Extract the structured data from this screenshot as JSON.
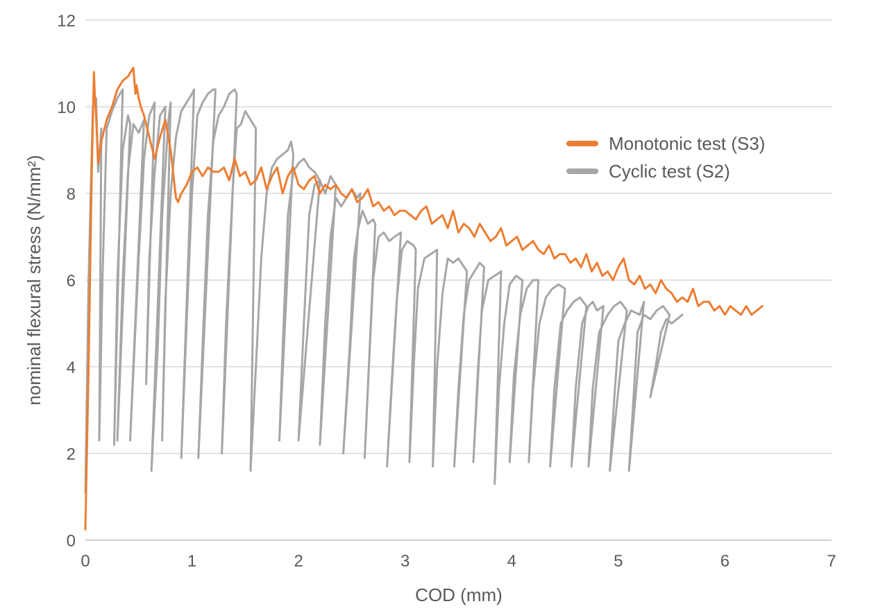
{
  "chart_data": {
    "type": "line",
    "xlabel": "COD (mm)",
    "ylabel": "nominal flexural stress (N/mm²)",
    "xlim": [
      0,
      7
    ],
    "ylim": [
      0,
      12
    ],
    "x_ticks": [
      "0",
      "1",
      "2",
      "3",
      "4",
      "5",
      "6",
      "7"
    ],
    "y_ticks": [
      "0",
      "2",
      "4",
      "6",
      "8",
      "10",
      "12"
    ],
    "grid": "horizontal",
    "legend_position": "upper-right",
    "series": [
      {
        "name": "Monotonic test (S3)",
        "color": "#ED7D31",
        "x": [
          0.0,
          0.03,
          0.06,
          0.08,
          0.09,
          0.1,
          0.12,
          0.15,
          0.2,
          0.25,
          0.3,
          0.35,
          0.4,
          0.45,
          0.47,
          0.48,
          0.5,
          0.52,
          0.55,
          0.6,
          0.65,
          0.7,
          0.75,
          0.8,
          0.85,
          0.87,
          0.9,
          0.95,
          1.0,
          1.05,
          1.1,
          1.15,
          1.2,
          1.25,
          1.3,
          1.35,
          1.4,
          1.45,
          1.5,
          1.55,
          1.6,
          1.65,
          1.7,
          1.75,
          1.8,
          1.85,
          1.9,
          1.95,
          2.0,
          2.05,
          2.1,
          2.15,
          2.2,
          2.25,
          2.3,
          2.35,
          2.4,
          2.45,
          2.5,
          2.55,
          2.6,
          2.65,
          2.7,
          2.75,
          2.8,
          2.85,
          2.9,
          2.95,
          3.0,
          3.05,
          3.1,
          3.15,
          3.2,
          3.25,
          3.3,
          3.35,
          3.4,
          3.45,
          3.5,
          3.55,
          3.6,
          3.65,
          3.7,
          3.75,
          3.8,
          3.85,
          3.9,
          3.95,
          4.0,
          4.05,
          4.1,
          4.15,
          4.2,
          4.25,
          4.3,
          4.35,
          4.4,
          4.45,
          4.5,
          4.55,
          4.6,
          4.65,
          4.7,
          4.75,
          4.8,
          4.85,
          4.9,
          4.95,
          5.0,
          5.05,
          5.1,
          5.15,
          5.2,
          5.25,
          5.3,
          5.35,
          5.4,
          5.45,
          5.5,
          5.55,
          5.6,
          5.65,
          5.7,
          5.75,
          5.8,
          5.85,
          5.9,
          5.95,
          6.0,
          6.05,
          6.1,
          6.15,
          6.2,
          6.25,
          6.3,
          6.35
        ],
        "y": [
          0.25,
          4.0,
          8.5,
          10.8,
          10.2,
          9.8,
          8.7,
          9.2,
          9.7,
          10.0,
          10.4,
          10.6,
          10.7,
          10.9,
          10.3,
          10.5,
          10.2,
          10.0,
          9.8,
          9.3,
          8.8,
          9.3,
          9.7,
          9.0,
          7.9,
          7.8,
          8.0,
          8.2,
          8.5,
          8.6,
          8.4,
          8.6,
          8.5,
          8.5,
          8.6,
          8.3,
          8.8,
          8.4,
          8.5,
          8.2,
          8.3,
          8.6,
          8.1,
          8.4,
          8.6,
          8.0,
          8.4,
          8.6,
          8.2,
          8.1,
          8.3,
          8.4,
          8.0,
          8.2,
          8.1,
          8.2,
          8.0,
          7.9,
          8.1,
          7.8,
          7.9,
          8.1,
          7.7,
          7.8,
          7.6,
          7.7,
          7.5,
          7.6,
          7.6,
          7.5,
          7.4,
          7.6,
          7.7,
          7.3,
          7.4,
          7.5,
          7.2,
          7.6,
          7.1,
          7.3,
          7.2,
          7.0,
          7.3,
          7.1,
          6.9,
          7.0,
          7.2,
          6.8,
          6.9,
          7.0,
          6.7,
          6.8,
          6.9,
          6.7,
          6.6,
          6.8,
          6.5,
          6.6,
          6.6,
          6.4,
          6.5,
          6.3,
          6.6,
          6.2,
          6.4,
          6.1,
          6.2,
          6.0,
          6.3,
          6.5,
          6.0,
          5.9,
          6.1,
          5.8,
          5.9,
          5.7,
          6.0,
          5.8,
          5.7,
          5.5,
          5.6,
          5.5,
          5.8,
          5.4,
          5.5,
          5.5,
          5.3,
          5.4,
          5.2,
          5.4,
          5.3,
          5.2,
          5.4,
          5.2,
          5.3,
          5.4
        ]
      },
      {
        "name": "Cyclic test (S2)",
        "color": "#A6A6A6",
        "x": [
          0.0,
          0.03,
          0.07,
          0.1,
          0.12,
          0.15,
          0.13,
          0.16,
          0.2,
          0.25,
          0.3,
          0.35,
          0.27,
          0.3,
          0.35,
          0.4,
          0.42,
          0.3,
          0.35,
          0.4,
          0.45,
          0.5,
          0.55,
          0.42,
          0.5,
          0.55,
          0.6,
          0.65,
          0.57,
          0.6,
          0.65,
          0.7,
          0.75,
          0.62,
          0.68,
          0.72,
          0.78,
          0.8,
          0.72,
          0.75,
          0.8,
          0.85,
          0.9,
          0.95,
          1.0,
          1.02,
          0.9,
          0.95,
          1.0,
          1.05,
          1.1,
          1.15,
          1.2,
          1.22,
          1.06,
          1.1,
          1.15,
          1.2,
          1.25,
          1.3,
          1.35,
          1.4,
          1.42,
          1.28,
          1.32,
          1.38,
          1.42,
          1.46,
          1.5,
          1.55,
          1.6,
          1.55,
          1.6,
          1.65,
          1.7,
          1.75,
          1.8,
          1.85,
          1.9,
          1.93,
          1.95,
          1.82,
          1.86,
          1.9,
          1.95,
          2.0,
          2.05,
          2.1,
          2.15,
          2.2,
          2.0,
          2.05,
          2.1,
          2.15,
          2.2,
          2.25,
          2.3,
          2.35,
          2.2,
          2.25,
          2.3,
          2.35,
          2.4,
          2.45,
          2.5,
          2.55,
          2.58,
          2.42,
          2.48,
          2.52,
          2.56,
          2.6,
          2.65,
          2.7,
          2.72,
          2.62,
          2.66,
          2.7,
          2.75,
          2.8,
          2.85,
          2.9,
          2.96,
          2.83,
          2.87,
          2.92,
          2.97,
          3.02,
          3.08,
          3.1,
          3.04,
          3.08,
          3.12,
          3.18,
          3.24,
          3.3,
          3.26,
          3.3,
          3.35,
          3.4,
          3.45,
          3.5,
          3.58,
          3.46,
          3.5,
          3.55,
          3.6,
          3.65,
          3.7,
          3.74,
          3.64,
          3.68,
          3.72,
          3.78,
          3.84,
          3.9,
          3.84,
          3.88,
          3.93,
          3.98,
          4.04,
          4.1,
          3.98,
          4.02,
          4.08,
          4.14,
          4.2,
          4.25,
          4.16,
          4.2,
          4.26,
          4.32,
          4.38,
          4.44,
          4.5,
          4.36,
          4.4,
          4.46,
          4.52,
          4.58,
          4.64,
          4.7,
          4.56,
          4.6,
          4.66,
          4.72,
          4.76,
          4.8,
          4.86,
          4.72,
          4.76,
          4.82,
          4.86,
          4.9,
          4.96,
          5.02,
          5.08,
          4.92,
          4.96,
          5.0,
          5.06,
          5.12,
          5.2,
          5.24,
          5.1,
          5.14,
          5.18,
          5.24,
          5.3,
          5.36,
          5.42,
          5.48,
          5.3,
          5.35,
          5.4,
          5.45,
          5.5,
          5.55,
          5.6
        ],
        "y": [
          1.1,
          6.0,
          10.0,
          10.2,
          8.5,
          9.5,
          2.3,
          6.0,
          9.5,
          9.9,
          10.2,
          10.4,
          2.2,
          6.0,
          9.0,
          9.8,
          9.6,
          2.3,
          6.0,
          8.5,
          9.6,
          9.4,
          9.7,
          2.3,
          6.5,
          8.8,
          9.8,
          10.1,
          3.6,
          6.5,
          8.5,
          9.8,
          10.0,
          1.6,
          4.5,
          7.5,
          9.7,
          10.1,
          2.3,
          5.5,
          8.0,
          9.3,
          9.9,
          10.1,
          10.3,
          10.4,
          1.9,
          5.0,
          8.0,
          9.8,
          10.1,
          10.3,
          10.4,
          10.4,
          1.9,
          4.5,
          7.5,
          9.2,
          9.8,
          10.0,
          10.3,
          10.4,
          10.3,
          2.0,
          5.0,
          8.0,
          9.5,
          9.6,
          9.9,
          9.7,
          9.5,
          1.6,
          4.0,
          6.5,
          8.0,
          8.6,
          8.8,
          8.9,
          9.0,
          9.2,
          8.9,
          2.3,
          5.0,
          7.5,
          8.5,
          8.7,
          8.8,
          8.6,
          8.5,
          8.3,
          2.3,
          5.0,
          7.5,
          8.2,
          8.3,
          8.0,
          8.4,
          8.2,
          2.2,
          5.0,
          7.0,
          7.9,
          7.7,
          7.9,
          8.1,
          7.9,
          8.0,
          2.0,
          4.5,
          6.5,
          7.2,
          7.6,
          7.3,
          7.4,
          7.3,
          1.9,
          4.0,
          6.0,
          7.0,
          7.1,
          6.9,
          7.0,
          7.1,
          1.7,
          3.5,
          5.5,
          6.7,
          6.9,
          6.8,
          6.7,
          1.8,
          4.0,
          5.8,
          6.5,
          6.6,
          6.7,
          1.7,
          4.0,
          5.7,
          6.5,
          6.4,
          6.5,
          6.2,
          1.7,
          3.5,
          5.2,
          6.0,
          6.2,
          6.4,
          6.3,
          1.8,
          3.8,
          5.3,
          6.0,
          6.1,
          6.2,
          1.3,
          3.5,
          5.0,
          5.9,
          6.1,
          6.0,
          1.8,
          3.8,
          5.2,
          5.8,
          6.0,
          6.0,
          1.8,
          3.5,
          5.0,
          5.6,
          5.8,
          5.9,
          5.8,
          1.7,
          3.5,
          5.0,
          5.3,
          5.5,
          5.6,
          5.4,
          1.7,
          3.5,
          5.0,
          5.4,
          5.5,
          5.3,
          5.4,
          1.7,
          3.5,
          4.8,
          5.0,
          5.2,
          5.4,
          5.5,
          5.3,
          1.6,
          3.2,
          4.6,
          5.0,
          5.3,
          5.2,
          5.5,
          1.6,
          3.2,
          4.8,
          5.2,
          5.1,
          5.3,
          5.4,
          5.2,
          3.3,
          4.0,
          4.8,
          5.1,
          5.0,
          5.1,
          5.2
        ]
      }
    ]
  }
}
